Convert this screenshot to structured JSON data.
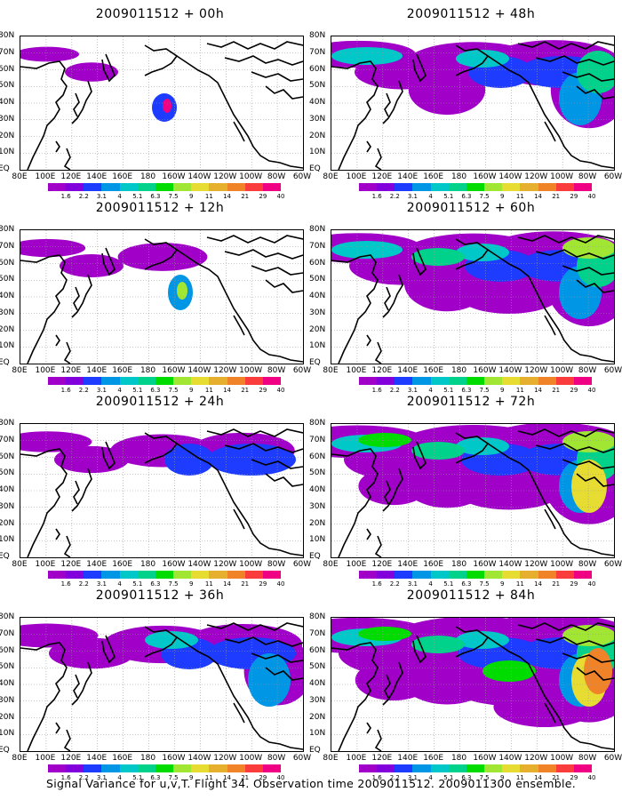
{
  "lat_labels": [
    "80N",
    "70N",
    "60N",
    "50N",
    "40N",
    "30N",
    "20N",
    "10N",
    "EQ"
  ],
  "lon_labels": [
    "80E",
    "100E",
    "120E",
    "140E",
    "160E",
    "180",
    "160W",
    "140W",
    "120W",
    "100W",
    "80W",
    "60W"
  ],
  "colorbar": {
    "colors": [
      "#a000c8",
      "#8200dc",
      "#1e3cff",
      "#0096e6",
      "#00c8c8",
      "#00d28c",
      "#00dc00",
      "#a0e632",
      "#e6dc32",
      "#e6af2d",
      "#f08228",
      "#fa3c3c",
      "#f00082"
    ],
    "labels": [
      "1.6",
      "2.2",
      "3.1",
      "4",
      "5.1",
      "6.3",
      "7.5",
      "9",
      "11",
      "14",
      "21",
      "29",
      "40"
    ]
  },
  "panels": [
    {
      "title": "2009011512 + 00h",
      "level": 0
    },
    {
      "title": "2009011512 + 48h",
      "level": 4
    },
    {
      "title": "2009011512 + 12h",
      "level": 1
    },
    {
      "title": "2009011512 + 60h",
      "level": 5
    },
    {
      "title": "2009011512 + 24h",
      "level": 2
    },
    {
      "title": "2009011512 + 72h",
      "level": 6
    },
    {
      "title": "2009011512 + 36h",
      "level": 3
    },
    {
      "title": "2009011512 + 84h",
      "level": 7
    }
  ],
  "footer": "Signal Variance for u,v,T. Flight 34. Observation time 2009011512. 2009011300 ensemble."
}
